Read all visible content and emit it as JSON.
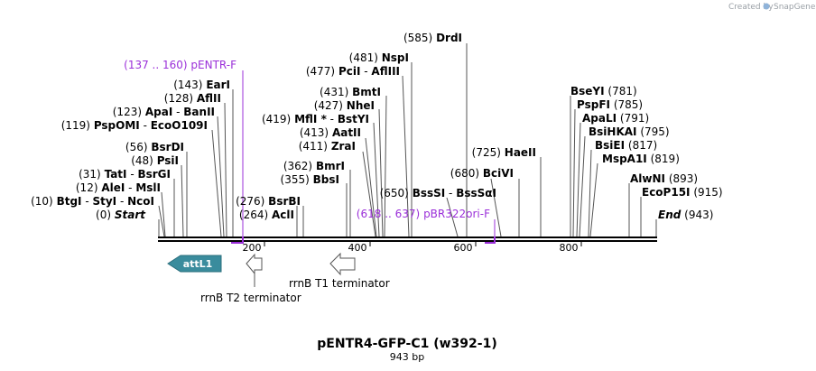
{
  "credit": {
    "created_by": "Created by",
    "brand": "SnapGene"
  },
  "title": "pENTR4-GFP-C1 (w392-1)",
  "subtitle": "943 bp",
  "ticks": [
    "200",
    "400",
    "600",
    "800"
  ],
  "primers": [
    {
      "id": "pentr-f",
      "pos": "(137 .. 160)",
      "name": "pENTR-F",
      "color": "#9b30d9"
    },
    {
      "id": "pbr322ori-f",
      "pos": "(618 .. 637)",
      "name": "pBR322ori-F",
      "color": "#9b30d9"
    }
  ],
  "sites": [
    {
      "id": "drdi",
      "pos": "(585)",
      "name": "DrdI"
    },
    {
      "id": "nspi",
      "pos": "(481)",
      "name": "NspI"
    },
    {
      "id": "pcii",
      "pos": "(477)",
      "name": "PciI",
      "alias": "AflIII"
    },
    {
      "id": "eari",
      "pos": "(143)",
      "name": "EarI"
    },
    {
      "id": "afliii",
      "pos": "(128)",
      "name": "AflII"
    },
    {
      "id": "apai",
      "pos": "(123)",
      "name": "ApaI",
      "alias": "BanII"
    },
    {
      "id": "pspomi",
      "pos": "(119)",
      "name": "PspOMI",
      "alias": "EcoO109I"
    },
    {
      "id": "bsrdi",
      "pos": "(56)",
      "name": "BsrDI"
    },
    {
      "id": "psii",
      "pos": "(48)",
      "name": "PsiI"
    },
    {
      "id": "tati",
      "pos": "(31)",
      "name": "TatI",
      "alias": "BsrGI"
    },
    {
      "id": "alei",
      "pos": "(12)",
      "name": "AleI",
      "alias": "MslI"
    },
    {
      "id": "btgi",
      "pos": "(10)",
      "name": "BtgI",
      "alias": "StyI",
      "alias2": "NcoI"
    },
    {
      "id": "start",
      "pos": "(0)",
      "name": "Start"
    },
    {
      "id": "bmti",
      "pos": "(431)",
      "name": "BmtI"
    },
    {
      "id": "nhei",
      "pos": "(427)",
      "name": "NheI"
    },
    {
      "id": "mfli",
      "pos": "(419)",
      "name": "MflI",
      "star": "*",
      "alias": "BstYI"
    },
    {
      "id": "aatii",
      "pos": "(413)",
      "name": "AatII"
    },
    {
      "id": "zrai",
      "pos": "(411)",
      "name": "ZraI"
    },
    {
      "id": "bmri",
      "pos": "(362)",
      "name": "BmrI"
    },
    {
      "id": "bbsi",
      "pos": "(355)",
      "name": "BbsI"
    },
    {
      "id": "bsrbi",
      "pos": "(276)",
      "name": "BsrBI"
    },
    {
      "id": "acli",
      "pos": "(264)",
      "name": "AclI"
    },
    {
      "id": "haeii",
      "pos": "(725)",
      "name": "HaeII"
    },
    {
      "id": "bcivi",
      "pos": "(680)",
      "name": "BciVI"
    },
    {
      "id": "bsssi",
      "pos": "(650)",
      "name": "BssSI",
      "alias": "BssSαI"
    },
    {
      "id": "bseyi",
      "pos": "(781)",
      "name": "BseYI"
    },
    {
      "id": "pspfi",
      "pos": "(785)",
      "name": "PspFI"
    },
    {
      "id": "apali",
      "pos": "(791)",
      "name": "ApaLI"
    },
    {
      "id": "bsihkai",
      "pos": "(795)",
      "name": "BsiHKAI"
    },
    {
      "id": "bsiei",
      "pos": "(817)",
      "name": "BsiEI"
    },
    {
      "id": "mspa1i",
      "pos": "(819)",
      "name": "MspA1I"
    },
    {
      "id": "alwni",
      "pos": "(893)",
      "name": "AlwNI"
    },
    {
      "id": "ecop15i",
      "pos": "(915)",
      "name": "EcoP15I"
    },
    {
      "id": "end",
      "pos": "(943)",
      "name": "End"
    }
  ],
  "features": [
    {
      "id": "attl1",
      "name": "attL1",
      "color": "#3a8c9d"
    },
    {
      "id": "rrnb-t2",
      "name": "rrnB T2 terminator"
    },
    {
      "id": "rrnb-t1",
      "name": "rrnB T1 terminator"
    }
  ]
}
